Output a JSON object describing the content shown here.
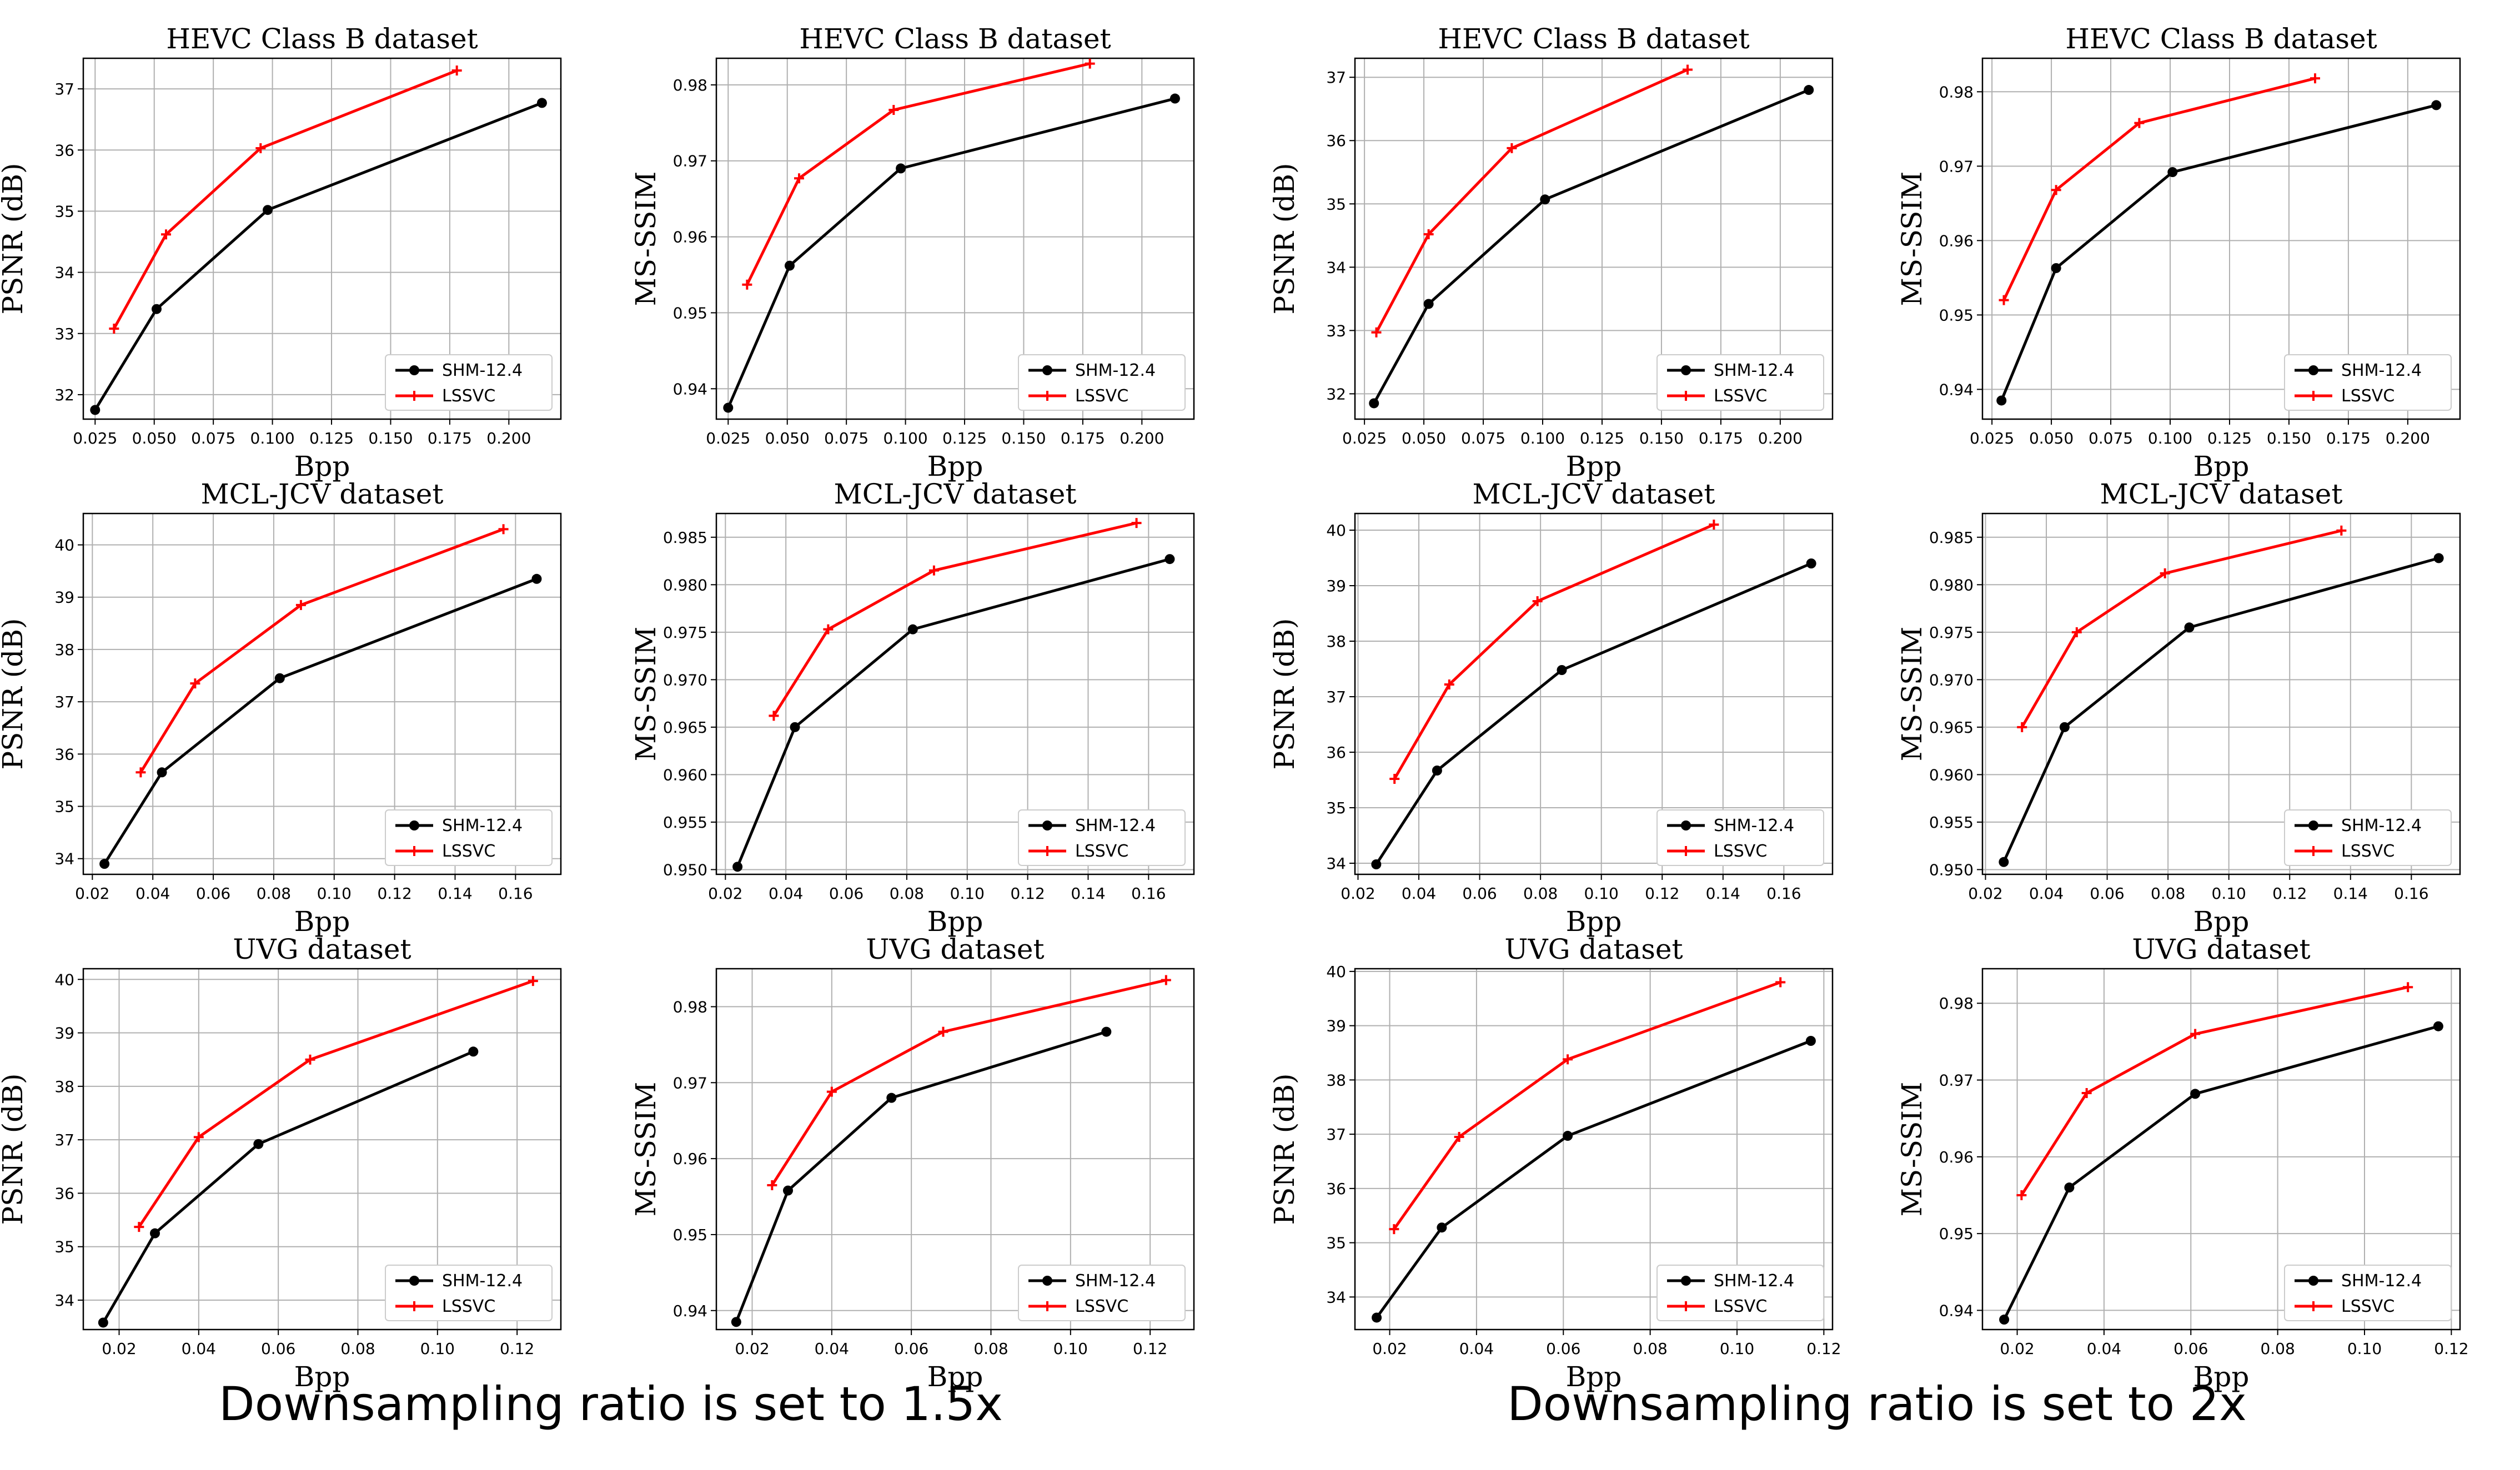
{
  "captions": [
    "Downsampling ratio is set to 1.5x",
    "Downsampling ratio is set to 2x"
  ],
  "series_styles": {
    "SHM-12.4": {
      "color": "#000000",
      "marker": "circle"
    },
    "LSSVC": {
      "color": "#ff0000",
      "marker": "plus"
    }
  },
  "chart_data": [
    {
      "type": "line",
      "title": "HEVC Class B dataset",
      "xlabel": "Bpp",
      "ylabel": "PSNR (dB)",
      "xlim": [
        0.02,
        0.222
      ],
      "ylim": [
        31.6,
        37.5
      ],
      "grid": true,
      "legend": "lower-right",
      "xticks": [
        "0.025",
        "0.050",
        "0.075",
        "0.100",
        "0.125",
        "0.150",
        "0.175",
        "0.200"
      ],
      "yticks": [
        "32",
        "33",
        "34",
        "35",
        "36",
        "37"
      ],
      "series": [
        {
          "name": "SHM-12.4",
          "x": [
            0.025,
            0.051,
            0.098,
            0.214
          ],
          "y": [
            31.75,
            33.4,
            35.02,
            36.77
          ]
        },
        {
          "name": "LSSVC",
          "x": [
            0.033,
            0.055,
            0.095,
            0.178
          ],
          "y": [
            33.08,
            34.62,
            36.03,
            37.3
          ]
        }
      ]
    },
    {
      "type": "line",
      "title": "HEVC Class B dataset",
      "xlabel": "Bpp",
      "ylabel": "MS-SSIM",
      "xlim": [
        0.02,
        0.222
      ],
      "ylim": [
        0.936,
        0.9835
      ],
      "grid": true,
      "legend": "lower-right",
      "xticks": [
        "0.025",
        "0.050",
        "0.075",
        "0.100",
        "0.125",
        "0.150",
        "0.175",
        "0.200"
      ],
      "yticks": [
        "0.94",
        "0.95",
        "0.96",
        "0.97",
        "0.98"
      ],
      "series": [
        {
          "name": "SHM-12.4",
          "x": [
            0.025,
            0.051,
            0.098,
            0.214
          ],
          "y": [
            0.9375,
            0.9562,
            0.969,
            0.9782
          ]
        },
        {
          "name": "LSSVC",
          "x": [
            0.033,
            0.055,
            0.095,
            0.178
          ],
          "y": [
            0.9537,
            0.9677,
            0.9767,
            0.9828
          ]
        }
      ]
    },
    {
      "type": "line",
      "title": "HEVC Class B dataset",
      "xlabel": "Bpp",
      "ylabel": "PSNR (dB)",
      "xlim": [
        0.021,
        0.222
      ],
      "ylim": [
        31.6,
        37.3
      ],
      "grid": true,
      "legend": "lower-right",
      "xticks": [
        "0.025",
        "0.050",
        "0.075",
        "0.100",
        "0.125",
        "0.150",
        "0.175",
        "0.200"
      ],
      "yticks": [
        "32",
        "33",
        "34",
        "35",
        "36",
        "37"
      ],
      "series": [
        {
          "name": "SHM-12.4",
          "x": [
            0.029,
            0.052,
            0.101,
            0.212
          ],
          "y": [
            31.85,
            33.42,
            35.07,
            36.8
          ]
        },
        {
          "name": "LSSVC",
          "x": [
            0.03,
            0.052,
            0.087,
            0.161
          ],
          "y": [
            32.97,
            34.52,
            35.88,
            37.12
          ]
        }
      ]
    },
    {
      "type": "line",
      "title": "HEVC Class B dataset",
      "xlabel": "Bpp",
      "ylabel": "MS-SSIM",
      "xlim": [
        0.021,
        0.222
      ],
      "ylim": [
        0.936,
        0.9845
      ],
      "grid": true,
      "legend": "lower-right",
      "xticks": [
        "0.025",
        "0.050",
        "0.075",
        "0.100",
        "0.125",
        "0.150",
        "0.175",
        "0.200"
      ],
      "yticks": [
        "0.94",
        "0.95",
        "0.96",
        "0.97",
        "0.98"
      ],
      "series": [
        {
          "name": "SHM-12.4",
          "x": [
            0.029,
            0.052,
            0.101,
            0.212
          ],
          "y": [
            0.9385,
            0.9563,
            0.9692,
            0.9782
          ]
        },
        {
          "name": "LSSVC",
          "x": [
            0.03,
            0.052,
            0.087,
            0.161
          ],
          "y": [
            0.952,
            0.9668,
            0.9758,
            0.9818
          ]
        }
      ]
    },
    {
      "type": "line",
      "title": "MCL-JCV dataset",
      "xlabel": "Bpp",
      "ylabel": "PSNR (dB)",
      "xlim": [
        0.017,
        0.175
      ],
      "ylim": [
        33.7,
        40.6
      ],
      "grid": true,
      "legend": "lower-right",
      "xticks": [
        "0.02",
        "0.04",
        "0.06",
        "0.08",
        "0.10",
        "0.12",
        "0.14",
        "0.16"
      ],
      "yticks": [
        "34",
        "35",
        "36",
        "37",
        "38",
        "39",
        "40"
      ],
      "series": [
        {
          "name": "SHM-12.4",
          "x": [
            0.024,
            0.043,
            0.082,
            0.167
          ],
          "y": [
            33.9,
            35.65,
            37.45,
            39.35
          ]
        },
        {
          "name": "LSSVC",
          "x": [
            0.036,
            0.054,
            0.089,
            0.156
          ],
          "y": [
            35.65,
            37.35,
            38.85,
            40.3
          ]
        }
      ]
    },
    {
      "type": "line",
      "title": "MCL-JCV dataset",
      "xlabel": "Bpp",
      "ylabel": "MS-SSIM",
      "xlim": [
        0.017,
        0.175
      ],
      "ylim": [
        0.9495,
        0.9875
      ],
      "grid": true,
      "legend": "lower-right",
      "xticks": [
        "0.02",
        "0.04",
        "0.06",
        "0.08",
        "0.10",
        "0.12",
        "0.14",
        "0.16"
      ],
      "yticks": [
        "0.950",
        "0.955",
        "0.960",
        "0.965",
        "0.970",
        "0.975",
        "0.980",
        "0.985"
      ],
      "series": [
        {
          "name": "SHM-12.4",
          "x": [
            0.024,
            0.043,
            0.082,
            0.167
          ],
          "y": [
            0.9503,
            0.965,
            0.9753,
            0.9827
          ]
        },
        {
          "name": "LSSVC",
          "x": [
            0.036,
            0.054,
            0.089,
            0.156
          ],
          "y": [
            0.9662,
            0.9753,
            0.9815,
            0.9865
          ]
        }
      ]
    },
    {
      "type": "line",
      "title": "MCL-JCV dataset",
      "xlabel": "Bpp",
      "ylabel": "PSNR (dB)",
      "xlim": [
        0.019,
        0.176
      ],
      "ylim": [
        33.8,
        40.3
      ],
      "grid": true,
      "legend": "lower-right",
      "xticks": [
        "0.02",
        "0.04",
        "0.06",
        "0.08",
        "0.10",
        "0.12",
        "0.14",
        "0.16"
      ],
      "yticks": [
        "34",
        "35",
        "36",
        "37",
        "38",
        "39",
        "40"
      ],
      "series": [
        {
          "name": "SHM-12.4",
          "x": [
            0.026,
            0.046,
            0.087,
            0.169
          ],
          "y": [
            33.98,
            35.67,
            37.48,
            39.4
          ]
        },
        {
          "name": "LSSVC",
          "x": [
            0.032,
            0.05,
            0.079,
            0.137
          ],
          "y": [
            35.52,
            37.22,
            38.72,
            40.1
          ]
        }
      ]
    },
    {
      "type": "line",
      "title": "MCL-JCV dataset",
      "xlabel": "Bpp",
      "ylabel": "MS-SSIM",
      "xlim": [
        0.019,
        0.176
      ],
      "ylim": [
        0.9495,
        0.9875
      ],
      "grid": true,
      "legend": "lower-right",
      "xticks": [
        "0.02",
        "0.04",
        "0.06",
        "0.08",
        "0.10",
        "0.12",
        "0.14",
        "0.16"
      ],
      "yticks": [
        "0.950",
        "0.955",
        "0.960",
        "0.965",
        "0.970",
        "0.975",
        "0.980",
        "0.985"
      ],
      "series": [
        {
          "name": "SHM-12.4",
          "x": [
            0.026,
            0.046,
            0.087,
            0.169
          ],
          "y": [
            0.9508,
            0.965,
            0.9755,
            0.9828
          ]
        },
        {
          "name": "LSSVC",
          "x": [
            0.032,
            0.05,
            0.079,
            0.137
          ],
          "y": [
            0.965,
            0.975,
            0.9812,
            0.9857
          ]
        }
      ]
    },
    {
      "type": "line",
      "title": "UVG dataset",
      "xlabel": "Bpp",
      "ylabel": "PSNR (dB)",
      "xlim": [
        0.011,
        0.131
      ],
      "ylim": [
        33.45,
        40.2
      ],
      "grid": true,
      "legend": "lower-right",
      "xticks": [
        "0.02",
        "0.04",
        "0.06",
        "0.08",
        "0.10",
        "0.12"
      ],
      "yticks": [
        "34",
        "35",
        "36",
        "37",
        "38",
        "39",
        "40"
      ],
      "series": [
        {
          "name": "SHM-12.4",
          "x": [
            0.016,
            0.029,
            0.055,
            0.109
          ],
          "y": [
            33.58,
            35.25,
            36.92,
            38.65
          ]
        },
        {
          "name": "LSSVC",
          "x": [
            0.025,
            0.04,
            0.068,
            0.124
          ],
          "y": [
            35.37,
            37.05,
            38.5,
            39.97
          ]
        }
      ]
    },
    {
      "type": "line",
      "title": "UVG dataset",
      "xlabel": "Bpp",
      "ylabel": "MS-SSIM",
      "xlim": [
        0.011,
        0.131
      ],
      "ylim": [
        0.9375,
        0.985
      ],
      "grid": true,
      "legend": "lower-right",
      "xticks": [
        "0.02",
        "0.04",
        "0.06",
        "0.08",
        "0.10",
        "0.12"
      ],
      "yticks": [
        "0.94",
        "0.95",
        "0.96",
        "0.97",
        "0.98"
      ],
      "series": [
        {
          "name": "SHM-12.4",
          "x": [
            0.016,
            0.029,
            0.055,
            0.109
          ],
          "y": [
            0.9385,
            0.9558,
            0.968,
            0.9767
          ]
        },
        {
          "name": "LSSVC",
          "x": [
            0.025,
            0.04,
            0.068,
            0.124
          ],
          "y": [
            0.9565,
            0.9688,
            0.9767,
            0.9835
          ]
        }
      ]
    },
    {
      "type": "line",
      "title": "UVG dataset",
      "xlabel": "Bpp",
      "ylabel": "PSNR (dB)",
      "xlim": [
        0.012,
        0.122
      ],
      "ylim": [
        33.4,
        40.05
      ],
      "grid": true,
      "legend": "lower-right",
      "xticks": [
        "0.02",
        "0.04",
        "0.06",
        "0.08",
        "0.10",
        "0.12"
      ],
      "yticks": [
        "34",
        "35",
        "36",
        "37",
        "38",
        "39",
        "40"
      ],
      "series": [
        {
          "name": "SHM-12.4",
          "x": [
            0.017,
            0.032,
            0.061,
            0.117
          ],
          "y": [
            33.62,
            35.28,
            36.97,
            38.72
          ]
        },
        {
          "name": "LSSVC",
          "x": [
            0.021,
            0.036,
            0.061,
            0.11
          ],
          "y": [
            35.25,
            36.95,
            38.38,
            39.8
          ]
        }
      ]
    },
    {
      "type": "line",
      "title": "UVG dataset",
      "xlabel": "Bpp",
      "ylabel": "MS-SSIM",
      "xlim": [
        0.012,
        0.122
      ],
      "ylim": [
        0.9375,
        0.9845
      ],
      "grid": true,
      "legend": "lower-right",
      "xticks": [
        "0.02",
        "0.04",
        "0.06",
        "0.08",
        "0.10",
        "0.12"
      ],
      "yticks": [
        "0.94",
        "0.95",
        "0.96",
        "0.97",
        "0.98"
      ],
      "series": [
        {
          "name": "SHM-12.4",
          "x": [
            0.017,
            0.032,
            0.061,
            0.117
          ],
          "y": [
            0.9388,
            0.956,
            0.9682,
            0.977
          ]
        },
        {
          "name": "LSSVC",
          "x": [
            0.021,
            0.036,
            0.061,
            0.11
          ],
          "y": [
            0.955,
            0.9683,
            0.976,
            0.9821
          ]
        }
      ]
    }
  ]
}
